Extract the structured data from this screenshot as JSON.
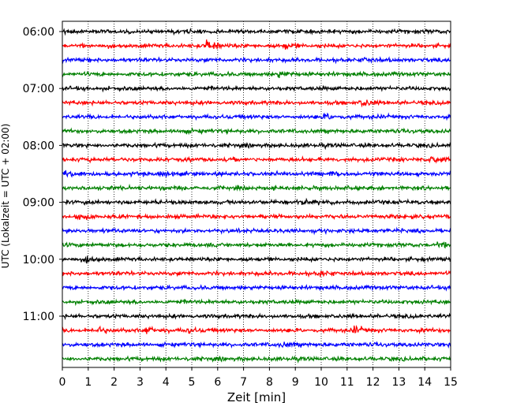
{
  "chart_data": {
    "type": "line",
    "title": "",
    "xlabel": "Zeit  [min]",
    "ylabel": "UTC (Lokalzeit = UTC + 02:00)",
    "xlim": [
      0,
      15
    ],
    "x_ticks": [
      "0",
      "1",
      "2",
      "3",
      "4",
      "5",
      "6",
      "7",
      "8",
      "9",
      "10",
      "11",
      "12",
      "13",
      "14",
      "15"
    ],
    "y_tick_labels": [
      "06:00",
      "07:00",
      "08:00",
      "09:00",
      "10:00",
      "11:00"
    ],
    "trace_interval_min": 15,
    "start_time": "06:00",
    "trace_count": 24,
    "trace_colors": [
      "#000000",
      "#ff0000",
      "#0000ff",
      "#008000"
    ],
    "grid": "vertical dotted",
    "events": [
      {
        "trace": 1,
        "minute": 5.6,
        "amplitude": 1.0
      },
      {
        "trace": 1,
        "minute": 8.6,
        "amplitude": 0.35
      },
      {
        "trace": 2,
        "minute": 11.7,
        "amplitude": 0.3
      },
      {
        "trace": 3,
        "minute": 8.4,
        "amplitude": 0.45
      },
      {
        "trace": 5,
        "minute": 11.6,
        "amplitude": 0.5
      },
      {
        "trace": 6,
        "minute": 10.2,
        "amplitude": 0.4
      },
      {
        "trace": 7,
        "minute": 4.6,
        "amplitude": 0.35
      },
      {
        "trace": 9,
        "minute": 14.3,
        "amplitude": 0.6
      },
      {
        "trace": 10,
        "minute": 0.2,
        "amplitude": 0.75
      },
      {
        "trace": 10,
        "minute": 3.8,
        "amplitude": 0.5
      },
      {
        "trace": 10,
        "minute": 10.4,
        "amplitude": 0.5
      },
      {
        "trace": 12,
        "minute": 9.2,
        "amplitude": 0.45
      },
      {
        "trace": 13,
        "minute": 0.6,
        "amplitude": 0.6
      },
      {
        "trace": 15,
        "minute": 14.5,
        "amplitude": 0.45
      },
      {
        "trace": 16,
        "minute": 1.0,
        "amplitude": 0.45
      },
      {
        "trace": 17,
        "minute": 10.0,
        "amplitude": 0.35
      },
      {
        "trace": 21,
        "minute": 1.3,
        "amplitude": 0.6
      },
      {
        "trace": 21,
        "minute": 3.3,
        "amplitude": 0.6
      },
      {
        "trace": 21,
        "minute": 11.3,
        "amplitude": 0.5
      },
      {
        "trace": 21,
        "minute": 4.9,
        "amplitude": 0.3
      },
      {
        "trace": 22,
        "minute": 8.5,
        "amplitude": 0.35
      }
    ]
  }
}
